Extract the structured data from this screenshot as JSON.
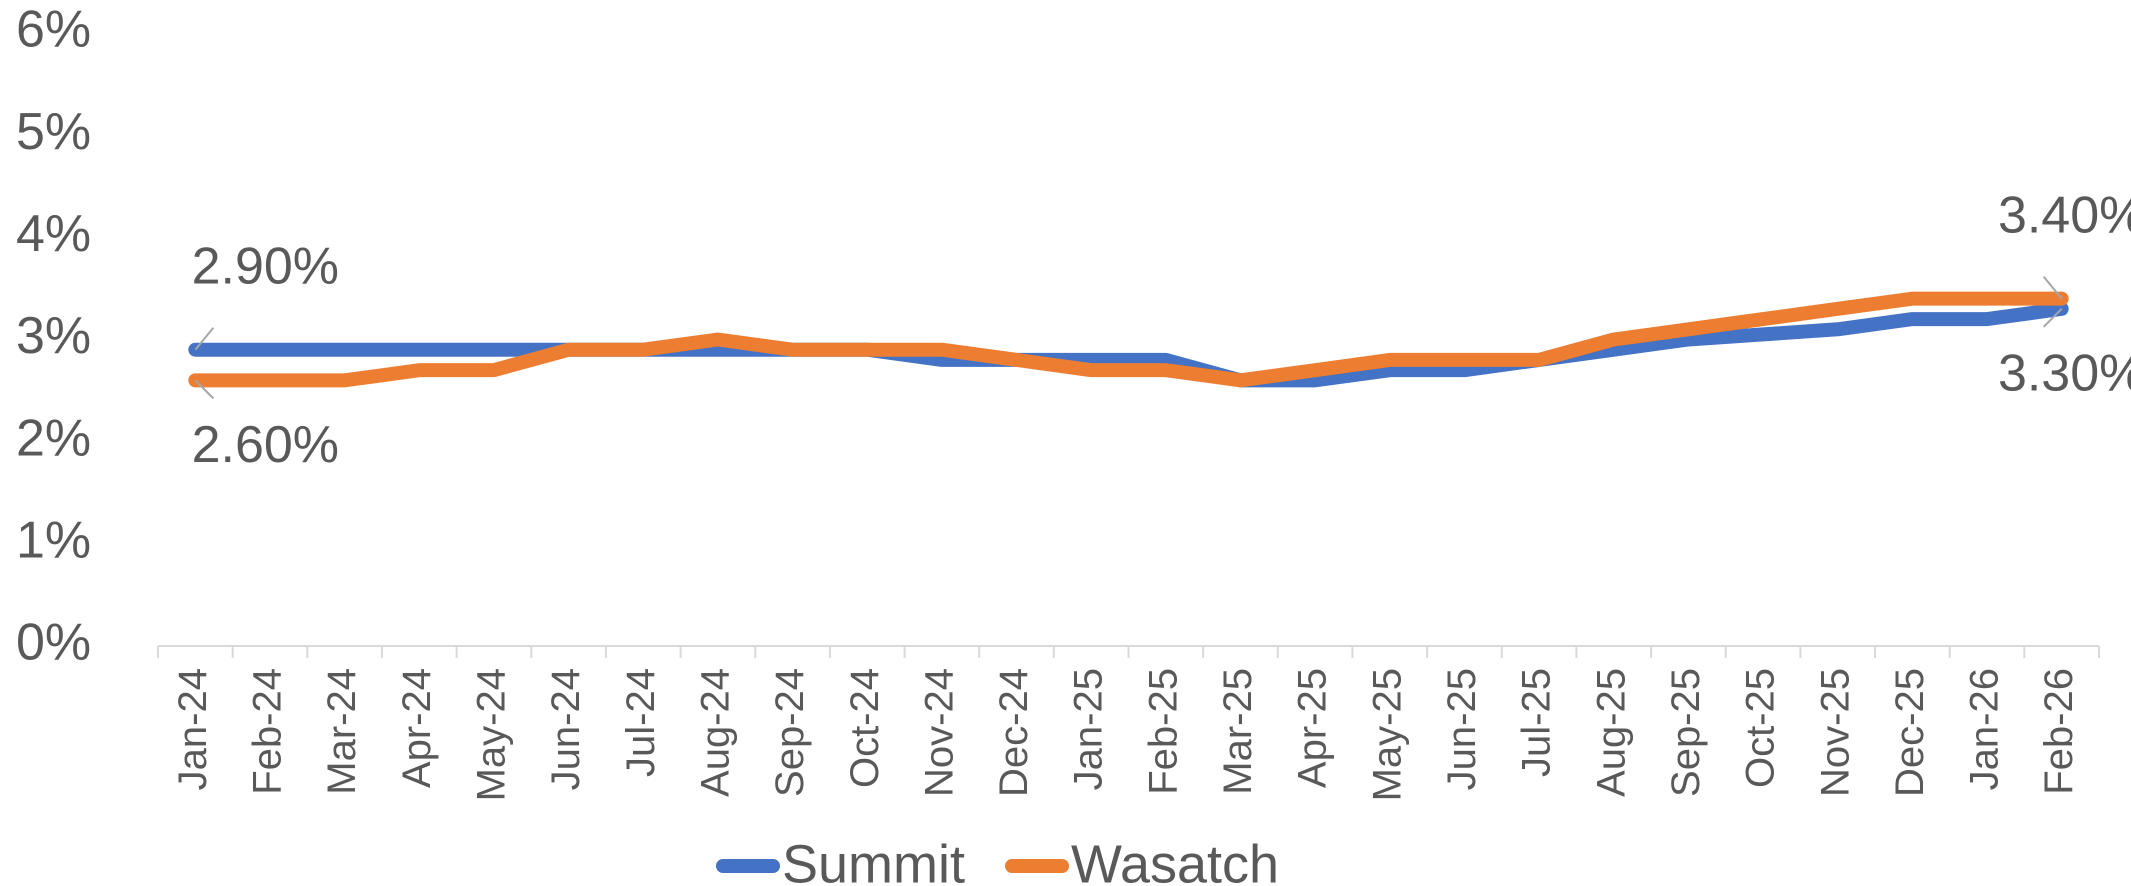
{
  "chart_data": {
    "type": "line",
    "categories": [
      "Jan-24",
      "Feb-24",
      "Mar-24",
      "Apr-24",
      "May-24",
      "Jun-24",
      "Jul-24",
      "Aug-24",
      "Sep-24",
      "Oct-24",
      "Nov-24",
      "Dec-24",
      "Jan-25",
      "Feb-25",
      "Mar-25",
      "Apr-25",
      "May-25",
      "Jun-25",
      "Jul-25",
      "Aug-25",
      "Sep-25",
      "Oct-25",
      "Nov-25",
      "Dec-25",
      "Jan-26",
      "Feb-26"
    ],
    "series": [
      {
        "name": "Summit",
        "color": "#4472c4",
        "values": [
          2.9,
          2.9,
          2.9,
          2.9,
          2.9,
          2.9,
          2.9,
          2.9,
          2.9,
          2.9,
          2.8,
          2.8,
          2.8,
          2.8,
          2.6,
          2.6,
          2.7,
          2.7,
          2.8,
          2.9,
          3.0,
          3.05,
          3.1,
          3.2,
          3.2,
          3.3
        ],
        "value_labels": [
          "2.90%",
          null,
          null,
          null,
          null,
          null,
          null,
          null,
          null,
          null,
          null,
          null,
          null,
          null,
          null,
          null,
          null,
          null,
          null,
          null,
          null,
          null,
          null,
          null,
          null,
          "3.30%"
        ]
      },
      {
        "name": "Wasatch",
        "color": "#ed7d31",
        "values": [
          2.6,
          2.6,
          2.6,
          2.7,
          2.7,
          2.9,
          2.9,
          3.0,
          2.9,
          2.9,
          2.9,
          2.8,
          2.7,
          2.7,
          2.6,
          2.7,
          2.8,
          2.8,
          2.8,
          3.0,
          3.1,
          3.2,
          3.3,
          3.4,
          3.4,
          3.4
        ],
        "value_labels": [
          "2.60%",
          null,
          null,
          null,
          null,
          null,
          null,
          null,
          null,
          null,
          null,
          null,
          null,
          null,
          null,
          null,
          null,
          null,
          null,
          null,
          null,
          null,
          null,
          null,
          null,
          "3.40%"
        ]
      }
    ],
    "ylim": [
      0,
      6
    ],
    "yticks": [
      {
        "value": 0,
        "label": "0%"
      },
      {
        "value": 1,
        "label": "1%"
      },
      {
        "value": 2,
        "label": "2%"
      },
      {
        "value": 3,
        "label": "3%"
      },
      {
        "value": 4,
        "label": "4%"
      },
      {
        "value": 5,
        "label": "5%"
      },
      {
        "value": 6,
        "label": "6%"
      }
    ],
    "grid": false,
    "legend": "bottom"
  }
}
